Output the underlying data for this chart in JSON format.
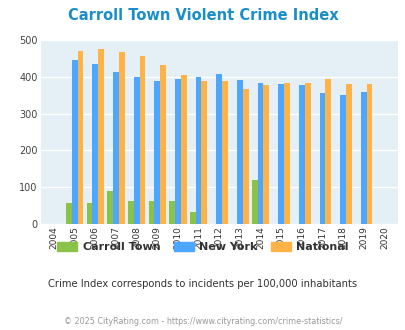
{
  "title": "Carroll Town Violent Crime Index",
  "title_color": "#1a8ec9",
  "years": [
    2004,
    2005,
    2006,
    2007,
    2008,
    2009,
    2010,
    2011,
    2012,
    2013,
    2014,
    2015,
    2016,
    2017,
    2018,
    2019,
    2020
  ],
  "carroll_town": [
    0,
    58,
    58,
    90,
    62,
    62,
    62,
    33,
    0,
    0,
    120,
    0,
    0,
    0,
    0,
    0,
    0
  ],
  "new_york": [
    0,
    445,
    433,
    413,
    400,
    387,
    393,
    400,
    406,
    391,
    383,
    379,
    376,
    356,
    350,
    357,
    0
  ],
  "national": [
    0,
    470,
    474,
    467,
    455,
    431,
    404,
    389,
    387,
    366,
    376,
    383,
    383,
    394,
    380,
    379,
    0
  ],
  "carroll_color": "#8bc34a",
  "newyork_color": "#4da6ff",
  "national_color": "#ffb347",
  "bg_color": "#e4f0f6",
  "ylim": [
    0,
    500
  ],
  "yticks": [
    0,
    100,
    200,
    300,
    400,
    500
  ],
  "subtitle": "Crime Index corresponds to incidents per 100,000 inhabitants",
  "footer": "© 2025 CityRating.com - https://www.cityrating.com/crime-statistics/",
  "subtitle_color": "#333333",
  "footer_color": "#999999",
  "legend_labels": [
    "Carroll Town",
    "New York",
    "National"
  ]
}
